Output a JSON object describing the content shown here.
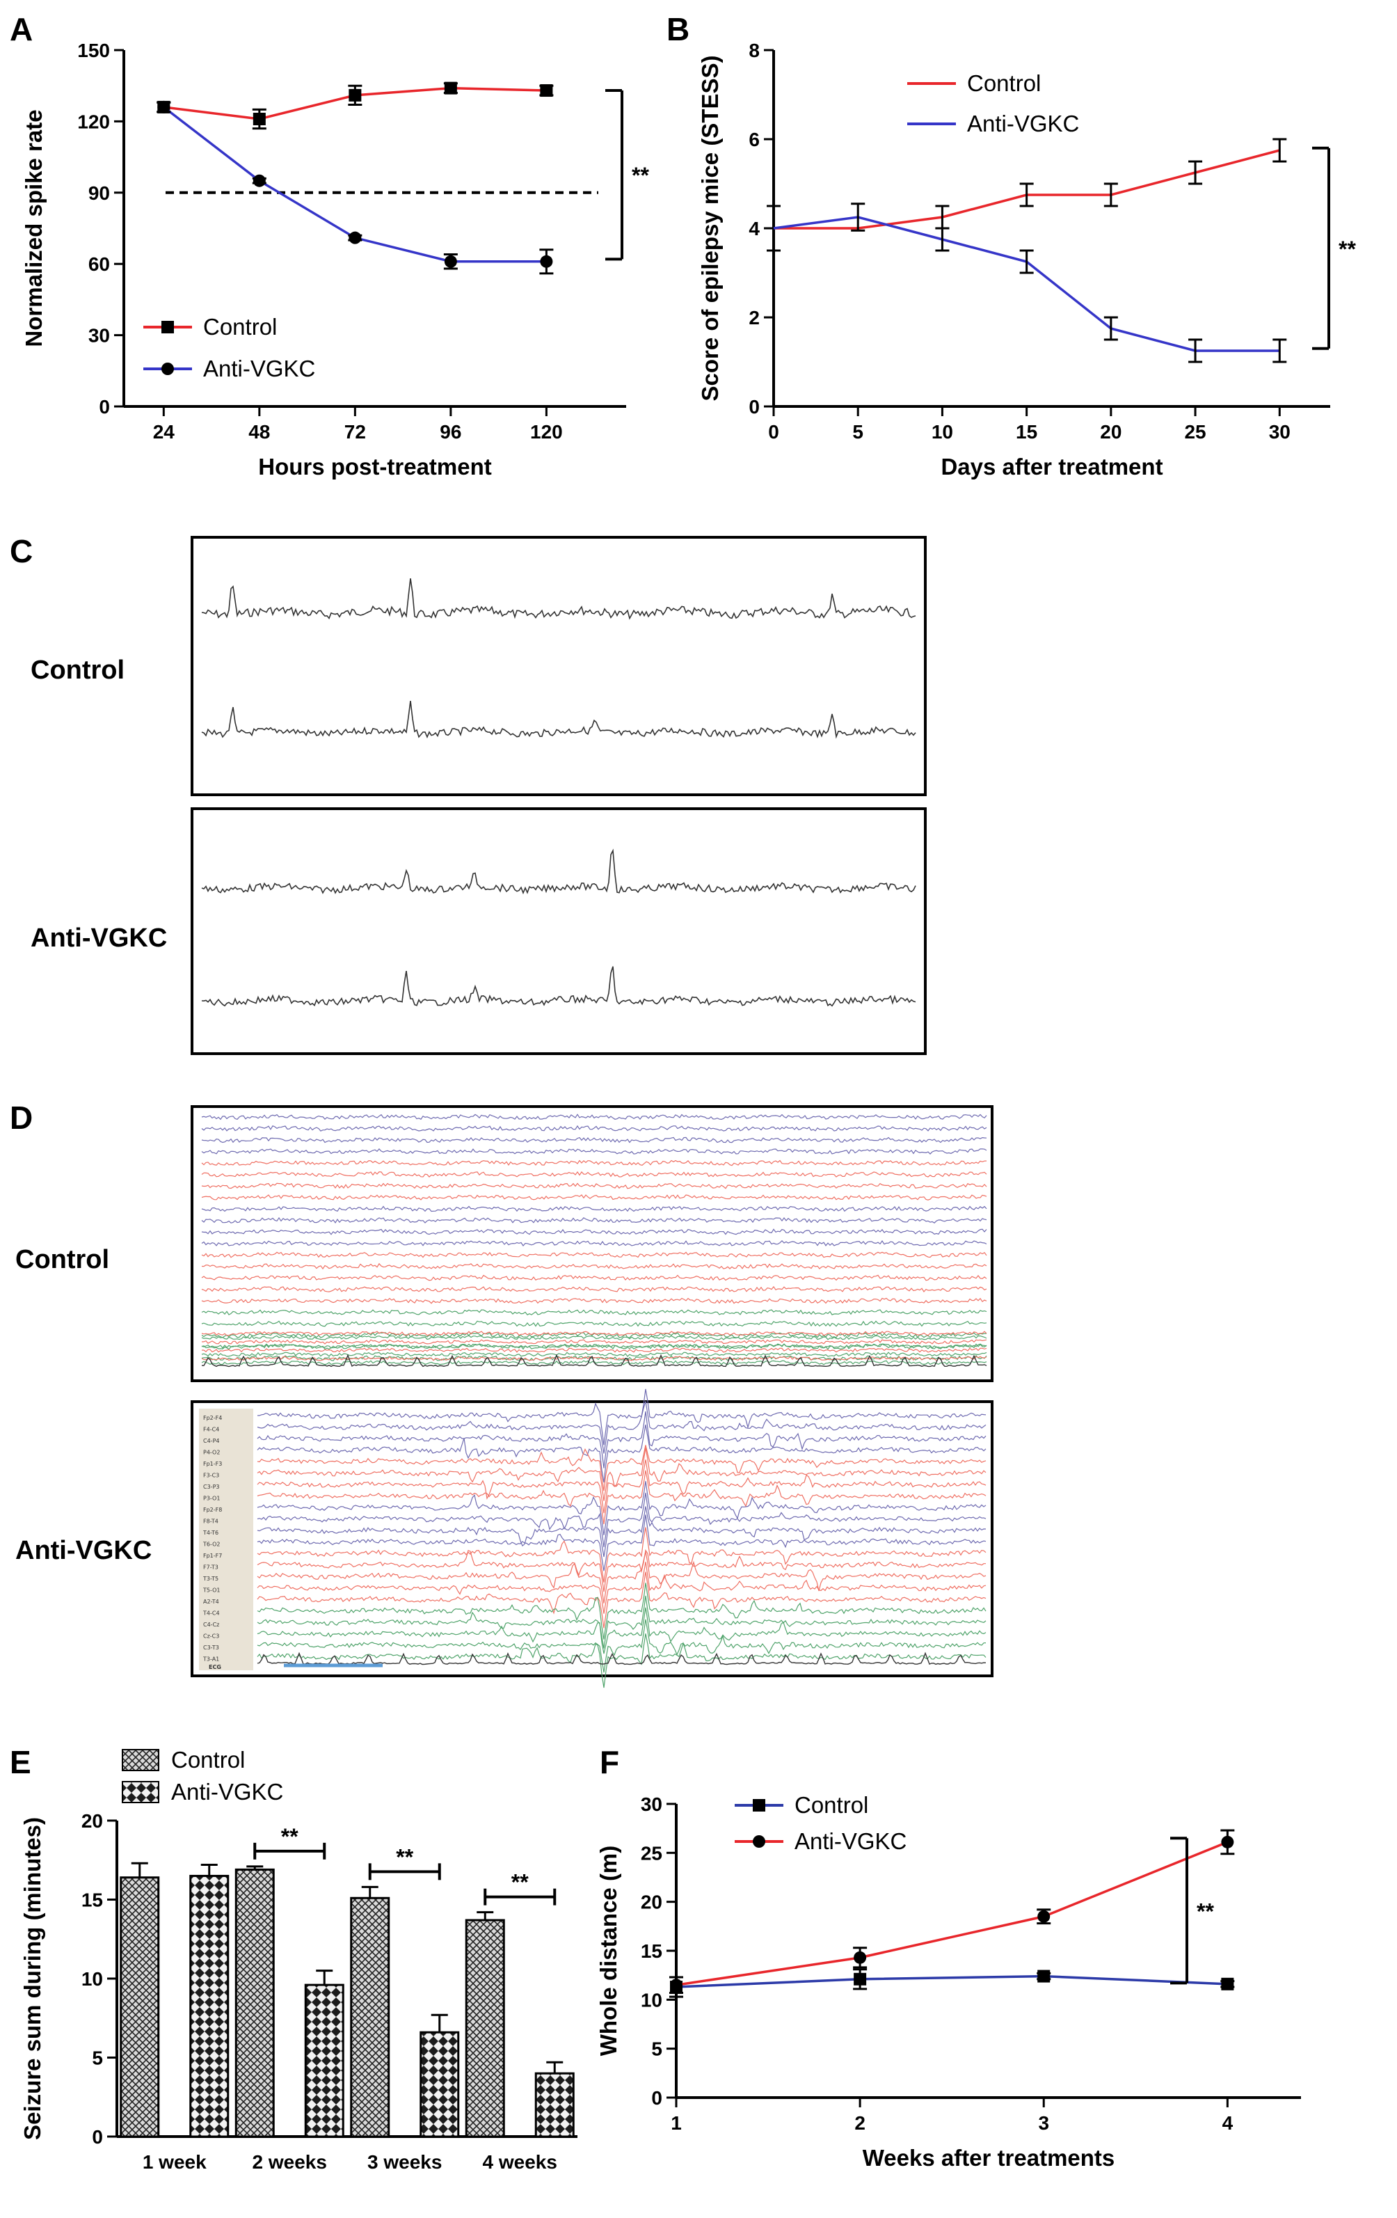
{
  "panel_labels": {
    "a": "A",
    "b": "B",
    "c": "C",
    "d": "D",
    "e": "E",
    "f": "F"
  },
  "trace_labels": {
    "c_control": "Control",
    "c_anti": "Anti-VGKC",
    "d_control": "Control",
    "d_anti": "Anti-VGKC"
  },
  "eeg_channels": [
    "Fp2-F4",
    "F4-C4",
    "C4-P4",
    "P4-O2",
    "Fp1-F3",
    "F3-C3",
    "C3-P3",
    "P3-O1",
    "Fp2-F8",
    "F8-T4",
    "T4-T6",
    "T6-O2",
    "Fp1-F7",
    "F7-T3",
    "T3-T5",
    "T5-O1",
    "A2-T4",
    "T4-C4",
    "C4-Cz",
    "Cz-C3",
    "C3-T3",
    "T3-A1"
  ],
  "ecg_label": "ECG",
  "colors": {
    "control_A": "#e8262b",
    "anti_A": "#3535c8",
    "trace_blue": "#6e6ab0",
    "trace_red": "#ef6f62",
    "trace_green": "#4fa36a"
  },
  "chart_data": [
    {
      "id": "A",
      "type": "line",
      "xlabel": "Hours post-treatment",
      "ylabel": "Normalized spike rate",
      "x": [
        24,
        48,
        72,
        96,
        120
      ],
      "xlim": [
        14,
        140
      ],
      "ylim": [
        0,
        150
      ],
      "xticks": [
        24,
        48,
        72,
        96,
        120
      ],
      "yticks": [
        0,
        30,
        60,
        90,
        120,
        150
      ],
      "reference_line": {
        "y": 90,
        "style": "dashed"
      },
      "significance": "**",
      "legend_position": "bottom-left",
      "series": [
        {
          "name": "Control",
          "color": "#e8262b",
          "marker": "square",
          "values": [
            126,
            121,
            131,
            134,
            133
          ],
          "err": [
            2,
            4,
            4,
            2,
            2
          ]
        },
        {
          "name": "Anti-VGKC",
          "color": "#3535c8",
          "marker": "circle",
          "values": [
            126,
            95,
            71,
            61,
            61
          ],
          "err": [
            2,
            1,
            1,
            3,
            5
          ]
        }
      ]
    },
    {
      "id": "B",
      "type": "line",
      "xlabel": "Days after treatment",
      "ylabel": "Score of epilepsy mice (STESS)",
      "x": [
        0,
        5,
        10,
        15,
        20,
        25,
        30
      ],
      "xlim": [
        0,
        33
      ],
      "ylim": [
        0,
        8
      ],
      "xticks": [
        0,
        5,
        10,
        15,
        20,
        25,
        30
      ],
      "yticks": [
        0,
        2,
        4,
        6,
        8
      ],
      "significance": "**",
      "legend_position": "top-left",
      "series": [
        {
          "name": "Control",
          "color": "#e8262b",
          "values": [
            4.0,
            4.0,
            4.25,
            4.75,
            4.75,
            5.25,
            5.75
          ],
          "err": [
            0.5,
            0,
            0.25,
            0.25,
            0.25,
            0.25,
            0.25
          ]
        },
        {
          "name": "Anti-VGKC",
          "color": "#3535c8",
          "values": [
            4.0,
            4.25,
            3.75,
            3.25,
            1.75,
            1.25,
            1.25
          ],
          "err": [
            0,
            0.3,
            0.25,
            0.25,
            0.25,
            0.25,
            0.25
          ]
        }
      ]
    },
    {
      "id": "E",
      "type": "bar",
      "ylabel": "Seizure sum during (minutes)",
      "categories": [
        "1 week",
        "2 weeks",
        "3 weeks",
        "4 weeks"
      ],
      "ylim": [
        0,
        20
      ],
      "yticks": [
        0,
        5,
        10,
        15,
        20
      ],
      "legend_position": "top-left",
      "series": [
        {
          "name": "Control",
          "pattern": "crosshatch",
          "values": [
            16.4,
            16.9,
            15.1,
            13.7
          ],
          "err": [
            0.9,
            0.2,
            0.7,
            0.5
          ]
        },
        {
          "name": "Anti-VGKC",
          "pattern": "checker",
          "values": [
            16.5,
            9.6,
            6.6,
            4.0
          ],
          "err": [
            0.7,
            0.9,
            1.1,
            0.7
          ]
        }
      ],
      "significance": [
        "",
        "**",
        "**",
        "**"
      ]
    },
    {
      "id": "F",
      "type": "line",
      "xlabel": "Weeks after treatments",
      "ylabel": "Whole distance (m)",
      "x": [
        1,
        2,
        3,
        4
      ],
      "xlim": [
        1,
        4.4
      ],
      "ylim": [
        0,
        30
      ],
      "xticks": [
        1,
        2,
        3,
        4
      ],
      "yticks": [
        0,
        5,
        10,
        15,
        20,
        25,
        30
      ],
      "significance": "**",
      "legend_position": "top-left",
      "series": [
        {
          "name": "Control",
          "color": "#2c3aa8",
          "marker": "square",
          "values": [
            11.3,
            12.1,
            12.4,
            11.6
          ],
          "err": [
            1.0,
            1.0,
            0.3,
            0.3
          ]
        },
        {
          "name": "Anti-VGKC",
          "color": "#e8262b",
          "marker": "circle",
          "values": [
            11.5,
            14.3,
            18.5,
            26.1
          ],
          "err": [
            0.8,
            1.0,
            0.7,
            1.2
          ]
        }
      ]
    }
  ]
}
